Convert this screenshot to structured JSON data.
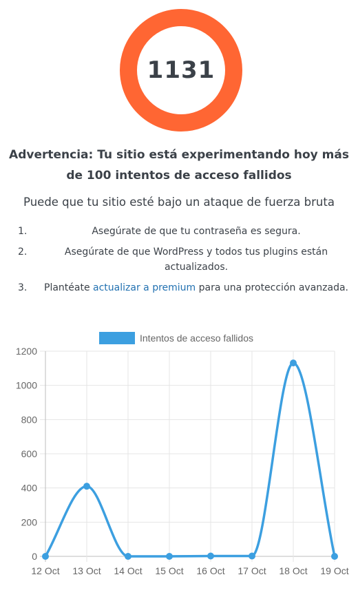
{
  "counter": {
    "value": "1131",
    "ring_color": "#ff6633"
  },
  "warning": {
    "title": "Advertencia: Tu sitio está experimentando hoy más de 100 intentos de acceso fallidos"
  },
  "subtitle": "Puede que tu sitio esté bajo un ataque de fuerza bruta",
  "tips": [
    {
      "number": "1.",
      "text": "Asegúrate de que tu contraseña es segura."
    },
    {
      "number": "2.",
      "text": "Asegúrate de que WordPress y todos tus plugins están actualizados."
    },
    {
      "number": "3.",
      "before": "Plantéate ",
      "link": "actualizar a premium",
      "after": " para una protección avanzada."
    }
  ],
  "link_color": "#2271b1",
  "chart_data": {
    "type": "line",
    "categories": [
      "12 Oct",
      "13 Oct",
      "14 Oct",
      "15 Oct",
      "16 Oct",
      "17 Oct",
      "18 Oct",
      "19 Oct"
    ],
    "series": [
      {
        "name": "Intentos de acceso fallidos",
        "values": [
          0,
          410,
          0,
          0,
          2,
          2,
          1131,
          0
        ],
        "color": "#3c9fe0"
      }
    ],
    "yticks": [
      "0",
      "200",
      "400",
      "600",
      "800",
      "1000",
      "1200"
    ],
    "ylim": [
      0,
      1200
    ],
    "grid": true,
    "legend": "top-center"
  }
}
